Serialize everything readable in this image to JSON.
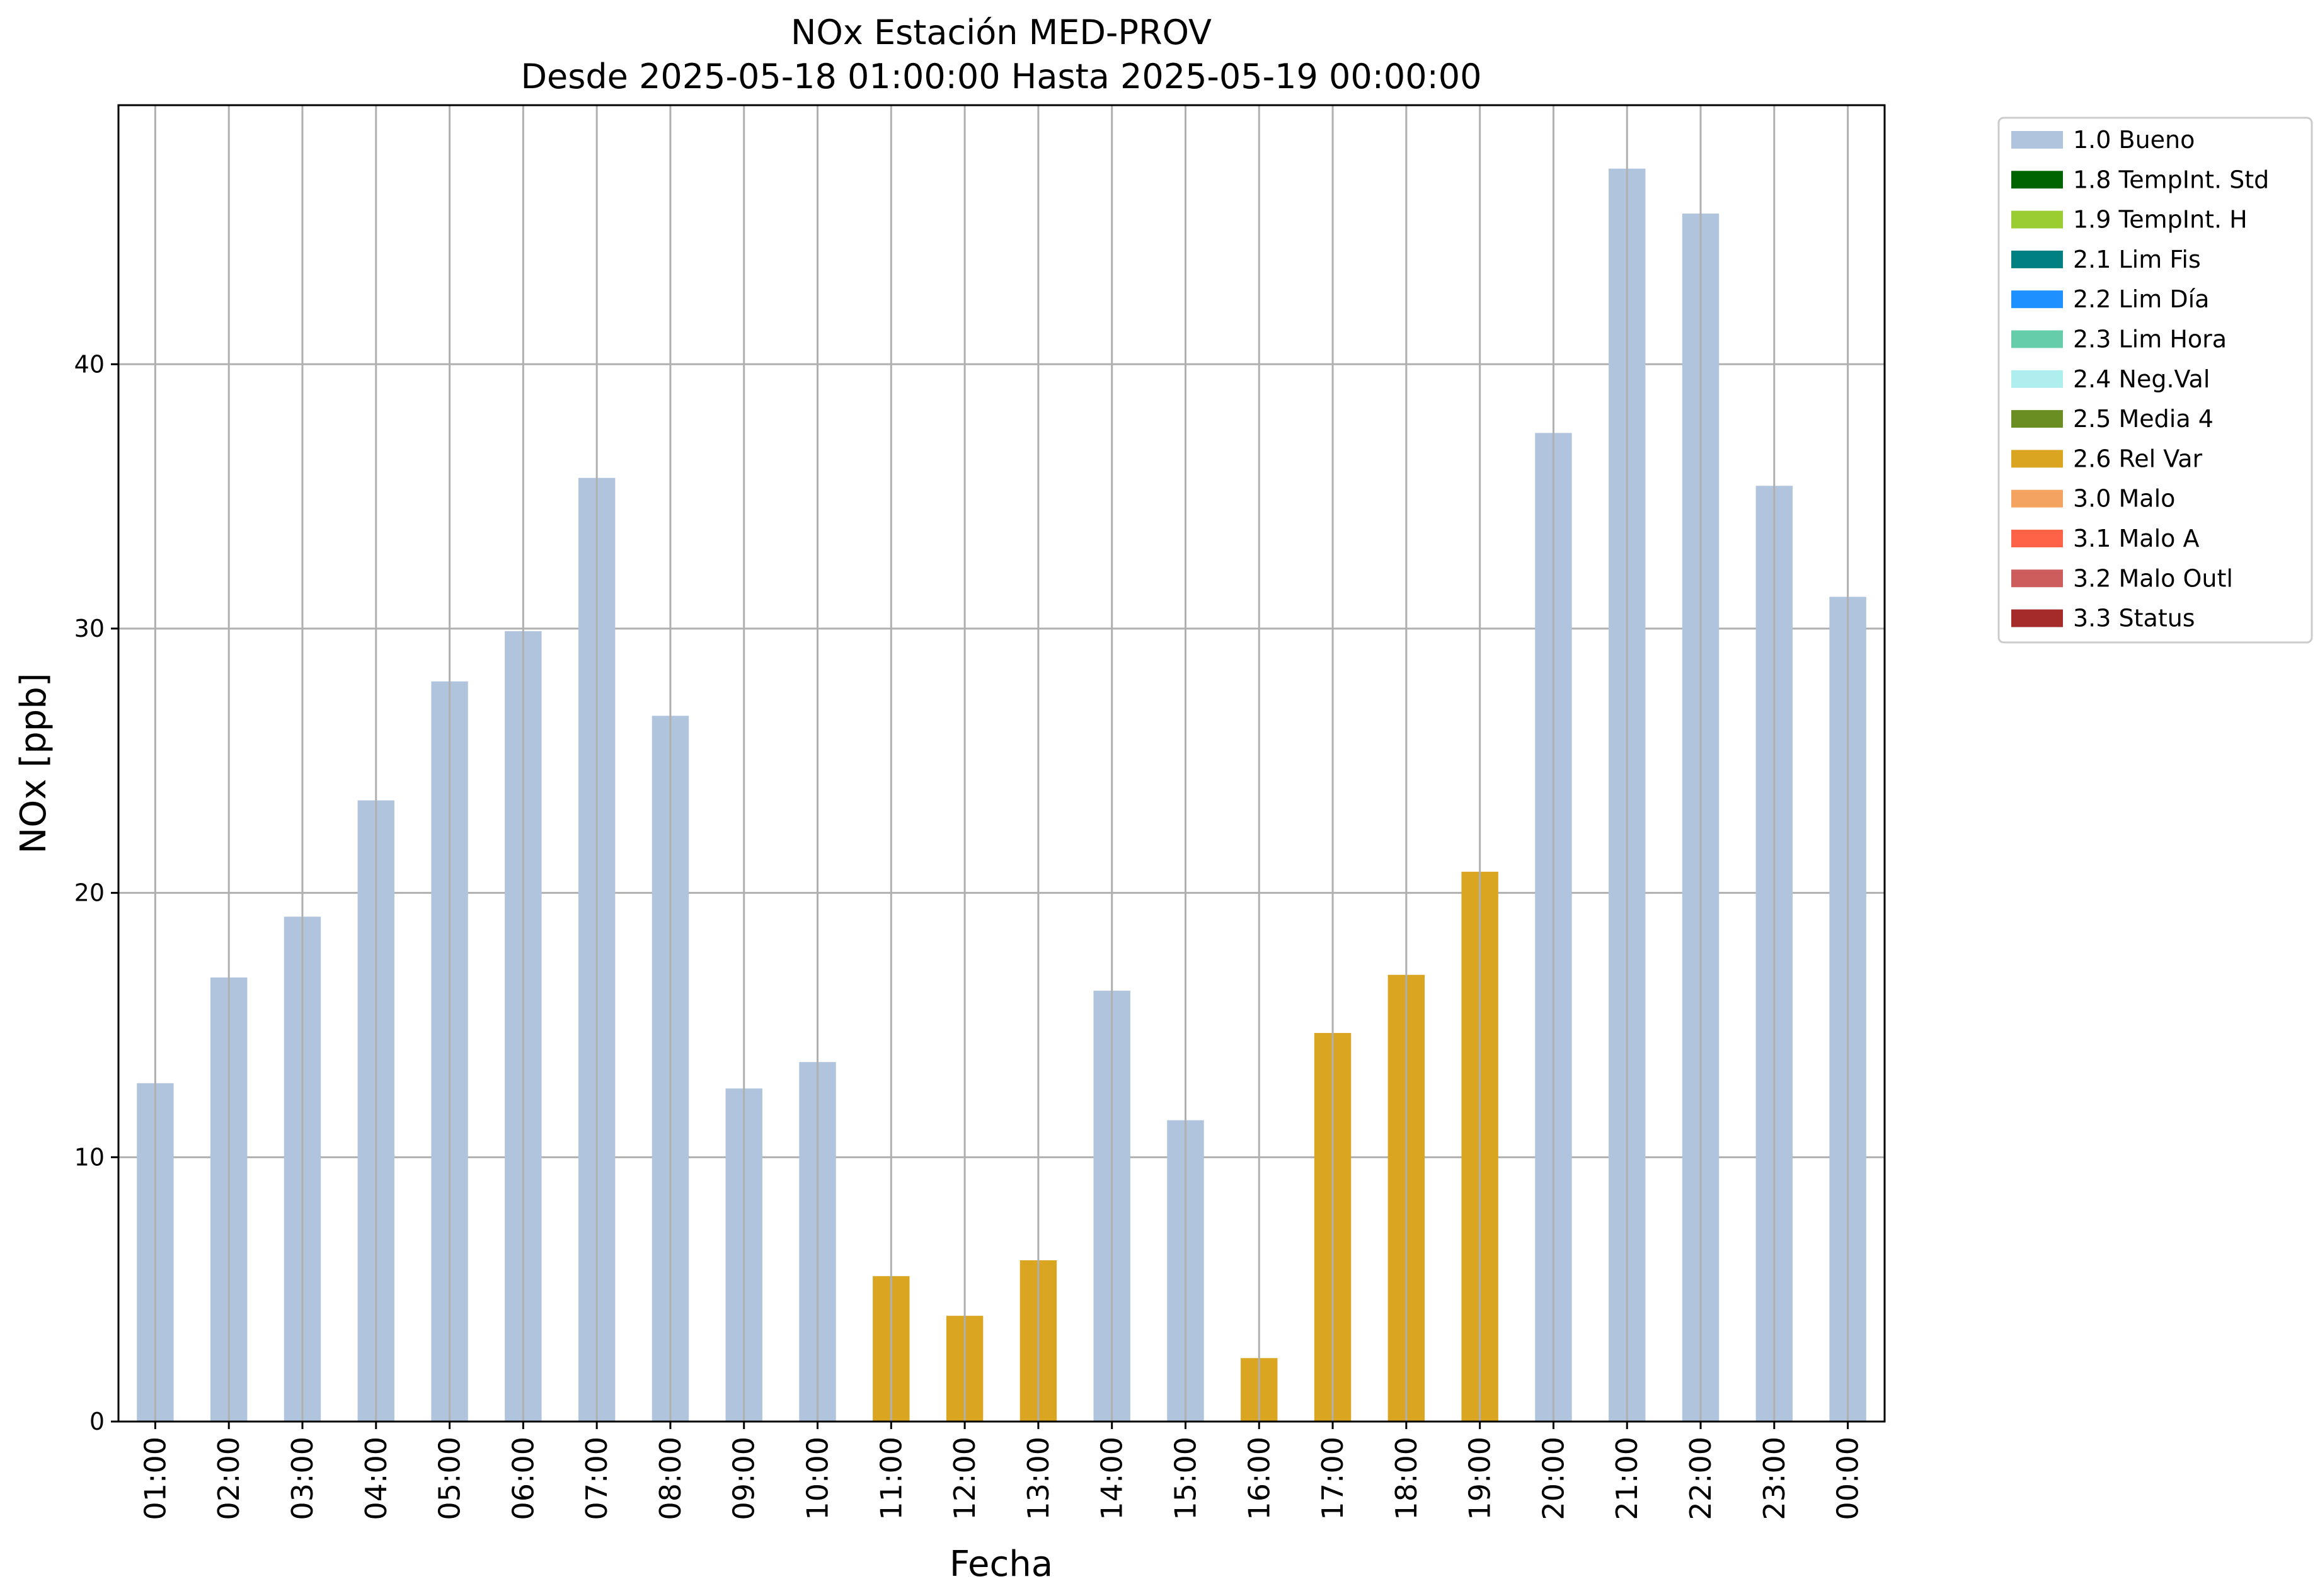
{
  "chart_data": {
    "type": "bar",
    "title": "NOx Estación MED-PROV",
    "subtitle": "Desde 2025-05-18 01:00:00 Hasta 2025-05-19 00:00:00",
    "xlabel": "Fecha",
    "ylabel": "NOx [ppb]",
    "ylim": [
      0,
      49.8
    ],
    "yticks": [
      0,
      10,
      20,
      30,
      40
    ],
    "grid": true,
    "legend_position": "outside-right-top",
    "categories": [
      "01:00",
      "02:00",
      "03:00",
      "04:00",
      "05:00",
      "06:00",
      "07:00",
      "08:00",
      "09:00",
      "10:00",
      "11:00",
      "12:00",
      "13:00",
      "14:00",
      "15:00",
      "16:00",
      "17:00",
      "18:00",
      "19:00",
      "20:00",
      "21:00",
      "22:00",
      "23:00",
      "00:00"
    ],
    "values": [
      12.8,
      16.8,
      19.1,
      23.5,
      28.0,
      29.9,
      35.7,
      26.7,
      12.6,
      13.6,
      5.5,
      4.0,
      6.1,
      16.3,
      11.4,
      2.4,
      14.7,
      16.9,
      20.8,
      37.4,
      47.4,
      45.7,
      35.4,
      31.2
    ],
    "flags": [
      "1.0 Bueno",
      "1.0 Bueno",
      "1.0 Bueno",
      "1.0 Bueno",
      "1.0 Bueno",
      "1.0 Bueno",
      "1.0 Bueno",
      "1.0 Bueno",
      "1.0 Bueno",
      "1.0 Bueno",
      "2.6 Rel Var",
      "2.6 Rel Var",
      "2.6 Rel Var",
      "1.0 Bueno",
      "1.0 Bueno",
      "2.6 Rel Var",
      "2.6 Rel Var",
      "2.6 Rel Var",
      "2.6 Rel Var",
      "1.0 Bueno",
      "1.0 Bueno",
      "1.0 Bueno",
      "1.0 Bueno",
      "1.0 Bueno"
    ],
    "legend": [
      {
        "label": "1.0 Bueno",
        "color": "#b0c4de"
      },
      {
        "label": "1.8 TempInt. Std",
        "color": "#006400"
      },
      {
        "label": "1.9 TempInt. H",
        "color": "#9acd32"
      },
      {
        "label": "2.1 Lim Fis",
        "color": "#008080"
      },
      {
        "label": "2.2 Lim Día",
        "color": "#1e90ff"
      },
      {
        "label": "2.3 Lim Hora",
        "color": "#66cdaa"
      },
      {
        "label": "2.4 Neg.Val",
        "color": "#afeeee"
      },
      {
        "label": "2.5 Media 4",
        "color": "#6b8e23"
      },
      {
        "label": "2.6 Rel Var",
        "color": "#daa520"
      },
      {
        "label": "3.0 Malo",
        "color": "#f4a460"
      },
      {
        "label": "3.1 Malo A",
        "color": "#ff6347"
      },
      {
        "label": "3.2 Malo Outl",
        "color": "#cd5c5c"
      },
      {
        "label": "3.3 Status",
        "color": "#a52a2a"
      }
    ]
  }
}
